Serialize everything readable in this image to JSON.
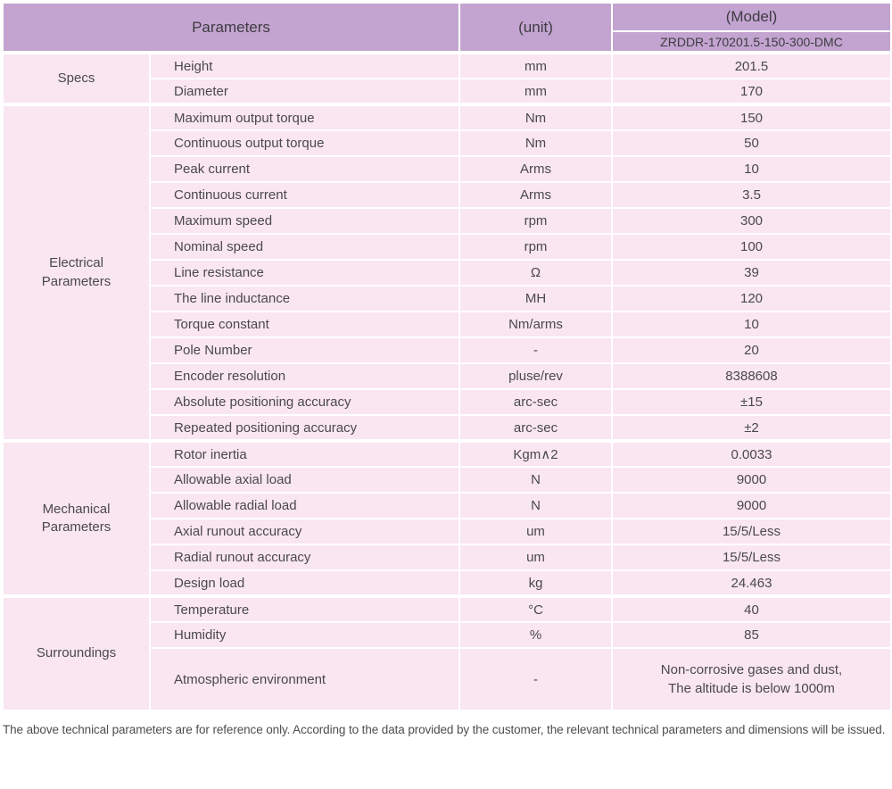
{
  "colors": {
    "header_bg": "#c3a4d0",
    "row_bg": "#f9e6f0",
    "border": "#ffffff",
    "header_text": "#3e3b42",
    "body_text": "#4b484e"
  },
  "header": {
    "parameters_label": "Parameters",
    "unit_label": "(unit)",
    "model_label": "(Model)",
    "model_value": "ZRDDR-170201.5-150-300-DMC"
  },
  "table": {
    "groups": [
      {
        "section": "Specs",
        "rows": [
          {
            "parameter": "Height",
            "unit": "mm",
            "value": "201.5"
          },
          {
            "parameter": "Diameter",
            "unit": "mm",
            "value": "170"
          }
        ]
      },
      {
        "section": "Electrical Parameters",
        "rows": [
          {
            "parameter": "Maximum output torque",
            "unit": "Nm",
            "value": "150"
          },
          {
            "parameter": "Continuous output torque",
            "unit": "Nm",
            "value": "50"
          },
          {
            "parameter": "Peak current",
            "unit": "Arms",
            "value": "10"
          },
          {
            "parameter": "Continuous current",
            "unit": "Arms",
            "value": "3.5"
          },
          {
            "parameter": "Maximum speed",
            "unit": "rpm",
            "value": "300"
          },
          {
            "parameter": "Nominal speed",
            "unit": "rpm",
            "value": "100"
          },
          {
            "parameter": "Line resistance",
            "unit": "Ω",
            "value": "39"
          },
          {
            "parameter": "The line inductance",
            "unit": "MH",
            "value": "120"
          },
          {
            "parameter": "Torque constant",
            "unit": "Nm/arms",
            "value": "10"
          },
          {
            "parameter": "Pole Number",
            "unit": "-",
            "value": "20"
          },
          {
            "parameter": "Encoder resolution",
            "unit": "pluse/rev",
            "value": "8388608"
          },
          {
            "parameter": "Absolute positioning accuracy",
            "unit": "arc-sec",
            "value": "±15"
          },
          {
            "parameter": "Repeated positioning accuracy",
            "unit": "arc-sec",
            "value": "±2"
          }
        ]
      },
      {
        "section": "Mechanical Parameters",
        "rows": [
          {
            "parameter": "Rotor inertia",
            "unit": "Kgm∧2",
            "value": "0.0033"
          },
          {
            "parameter": "Allowable axial load",
            "unit": "N",
            "value": "9000"
          },
          {
            "parameter": "Allowable radial load",
            "unit": "N",
            "value": "9000"
          },
          {
            "parameter": "Axial runout accuracy",
            "unit": "um",
            "value": "15/5/Less"
          },
          {
            "parameter": "Radial runout accuracy",
            "unit": "um",
            "value": "15/5/Less"
          },
          {
            "parameter": "Design load",
            "unit": "kg",
            "value": "24.463"
          }
        ]
      },
      {
        "section": "Surroundings",
        "rows": [
          {
            "parameter": "Temperature",
            "unit": "°C",
            "value": "40"
          },
          {
            "parameter": "Humidity",
            "unit": "%",
            "value": "85"
          },
          {
            "parameter": "Atmospheric environment",
            "unit": "-",
            "value": "Non-corrosive gases and dust,\nThe altitude is below 1000m"
          }
        ]
      }
    ]
  },
  "footer": {
    "note": "The above technical parameters are for reference only. According to the data provided by the customer, the relevant technical parameters and dimensions will be issued."
  }
}
